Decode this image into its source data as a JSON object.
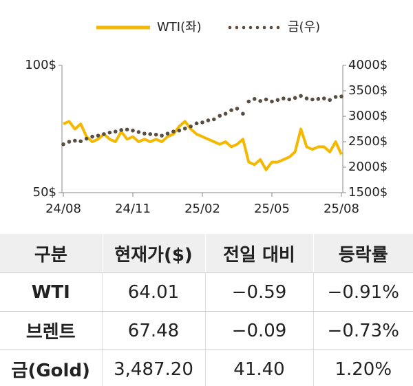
{
  "chart_data": {
    "type": "line",
    "categories": [
      "24/08",
      null,
      null,
      null,
      null,
      null,
      null,
      null,
      null,
      null,
      null,
      null,
      "24/11",
      null,
      null,
      null,
      null,
      null,
      null,
      null,
      null,
      null,
      null,
      null,
      "25/02",
      null,
      null,
      null,
      null,
      null,
      null,
      null,
      null,
      null,
      null,
      null,
      "25/05",
      null,
      null,
      null,
      null,
      null,
      null,
      null,
      null,
      null,
      null,
      null,
      "25/08"
    ],
    "series": [
      {
        "name": "WTI(좌)",
        "color": "#f5b800",
        "style": "line",
        "values": [
          77,
          78,
          75,
          77,
          72,
          70,
          71,
          73,
          71,
          70,
          74,
          71,
          72,
          70,
          71,
          70,
          71,
          70,
          72,
          73,
          76,
          78,
          75,
          73,
          72,
          71,
          70,
          69,
          70,
          68,
          69,
          71,
          62,
          61,
          63,
          59,
          62,
          62,
          63,
          64,
          66,
          75,
          68,
          67,
          68,
          68,
          66,
          70,
          65
        ]
      },
      {
        "name": "금(우)",
        "color": "#5a4e42",
        "style": "dots",
        "axis": "y2",
        "values": [
          2450,
          2500,
          2520,
          2510,
          2560,
          2600,
          2620,
          2650,
          2680,
          2700,
          2730,
          2740,
          2720,
          2690,
          2660,
          2650,
          2640,
          2620,
          2660,
          2700,
          2720,
          2760,
          2800,
          2860,
          2880,
          2920,
          2940,
          3010,
          3050,
          3120,
          3150,
          3050,
          3290,
          3340,
          3300,
          3330,
          3290,
          3320,
          3350,
          3330,
          3360,
          3400,
          3350,
          3330,
          3340,
          3350,
          3320,
          3380,
          3390
        ]
      }
    ],
    "ylim": [
      50,
      100
    ],
    "yticks": [
      {
        "value": 50,
        "label": "50$"
      },
      {
        "value": 100,
        "label": "100$"
      }
    ],
    "y2lim": [
      1500,
      4000
    ],
    "y2ticks": [
      {
        "value": 1500,
        "label": "1500$"
      },
      {
        "value": 2000,
        "label": "2000$"
      },
      {
        "value": 2500,
        "label": "2500$"
      },
      {
        "value": 3000,
        "label": "3000$"
      },
      {
        "value": 3500,
        "label": "3500$"
      },
      {
        "value": 4000,
        "label": "4000$"
      }
    ],
    "grid": false,
    "legend": "top"
  },
  "table": {
    "header": [
      "구분",
      "현재가($)",
      "전일 대비",
      "등락률"
    ],
    "rows": [
      [
        "WTI",
        "64.01",
        "−0.59",
        "−0.91%"
      ],
      [
        "브렌트",
        "67.48",
        "−0.09",
        "−0.73%"
      ],
      [
        "금(Gold)",
        "3,487.20",
        "41.40",
        "1.20%"
      ]
    ]
  }
}
